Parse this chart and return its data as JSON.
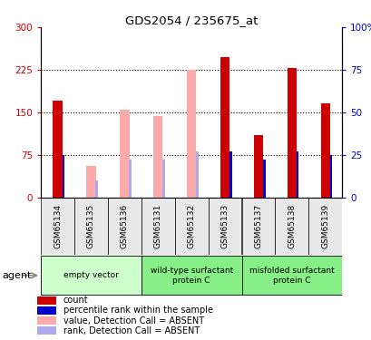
{
  "title": "GDS2054 / 235675_at",
  "samples": [
    "GSM65134",
    "GSM65135",
    "GSM65136",
    "GSM65131",
    "GSM65132",
    "GSM65133",
    "GSM65137",
    "GSM65138",
    "GSM65139"
  ],
  "count_values": [
    170,
    0,
    0,
    0,
    0,
    248,
    110,
    228,
    165
  ],
  "count_absent": [
    0,
    55,
    155,
    143,
    225,
    0,
    0,
    0,
    0
  ],
  "rank_values": [
    25,
    0,
    0,
    0,
    0,
    27,
    22,
    27,
    25
  ],
  "rank_absent": [
    0,
    10,
    22,
    22,
    27,
    0,
    0,
    0,
    0
  ],
  "ylim_left": [
    0,
    300
  ],
  "ylim_right": [
    0,
    100
  ],
  "yticks_left": [
    0,
    75,
    150,
    225,
    300
  ],
  "ytick_labels_left": [
    "0",
    "75",
    "150",
    "225",
    "300"
  ],
  "yticks_right": [
    0,
    25,
    50,
    75,
    100
  ],
  "ytick_labels_right": [
    "0",
    "25",
    "50",
    "75",
    "100%"
  ],
  "color_red": "#cc0000",
  "color_blue": "#0000cc",
  "color_pink": "#ffaaaa",
  "color_lightblue": "#aaaaee",
  "groups_def": [
    {
      "start": 0,
      "end": 3,
      "label": "empty vector",
      "color": "#ccffcc"
    },
    {
      "start": 3,
      "end": 6,
      "label": "wild-type surfactant\nprotein C",
      "color": "#88ee88"
    },
    {
      "start": 6,
      "end": 9,
      "label": "misfolded surfactant\nprotein C",
      "color": "#88ee88"
    }
  ],
  "legend_items": [
    {
      "label": "count",
      "color": "#cc0000"
    },
    {
      "label": "percentile rank within the sample",
      "color": "#0000cc"
    },
    {
      "label": "value, Detection Call = ABSENT",
      "color": "#ffaaaa"
    },
    {
      "label": "rank, Detection Call = ABSENT",
      "color": "#aaaaee"
    }
  ]
}
